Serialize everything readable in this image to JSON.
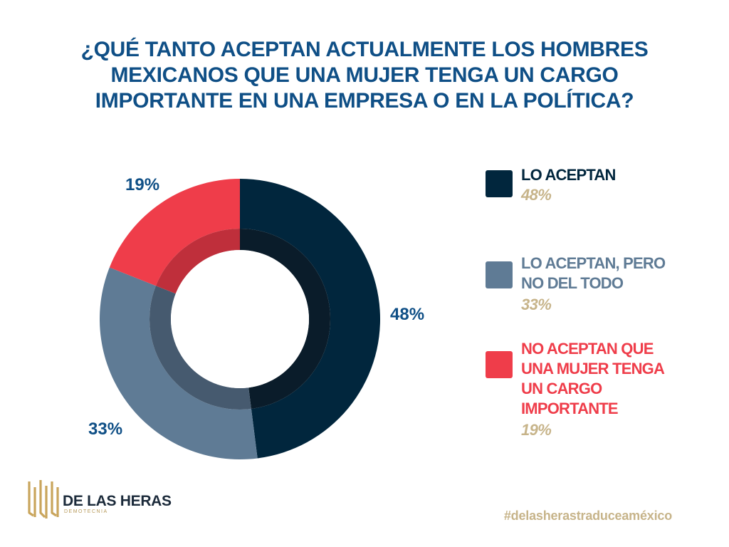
{
  "title_lines": [
    "¿QUÉ TANTO ACEPTAN ACTUALMENTE LOS HOMBRES",
    "MEXICANOS QUE UNA MUJER TENGA UN CARGO",
    "IMPORTANTE EN UNA EMPRESA O EN LA POLÍTICA?"
  ],
  "chart_data": {
    "type": "pie",
    "title": "¿QUÉ TANTO ACEPTAN ACTUALMENTE LOS HOMBRES MEXICANOS QUE UNA MUJER TENGA UN CARGO IMPORTANTE EN UNA EMPRESA O EN LA POLÍTICA?",
    "style": "donut",
    "start": "12 o'clock, clockwise",
    "slices": [
      {
        "label": "LO ACEPTAN",
        "value": 48,
        "display": "48%",
        "color": "#01263d",
        "shade": "#0a1c2a"
      },
      {
        "label": "LO ACEPTAN, PERO NO DEL TODO",
        "value": 33,
        "display": "33%",
        "color": "#5f7b95",
        "shade": "#465a6f"
      },
      {
        "label": "NO ACEPTAN QUE UNA MUJER TENGA UN CARGO IMPORTANTE",
        "value": 19,
        "display": "19%",
        "color": "#ef3d4a",
        "shade": "#bf2f3b"
      }
    ]
  },
  "legend": [
    {
      "lines": [
        "LO ACEPTAN"
      ],
      "pct": "48%",
      "color": "#01263d",
      "text_color": "#01263d"
    },
    {
      "lines": [
        "LO ACEPTAN, PERO",
        "NO DEL TODO"
      ],
      "pct": "33%",
      "color": "#5f7b95",
      "text_color": "#5f7b95"
    },
    {
      "lines": [
        "NO ACEPTAN QUE",
        "UNA MUJER TENGA",
        "UN CARGO",
        "IMPORTANTE"
      ],
      "pct": "19%",
      "color": "#ef3d4a",
      "text_color": "#ef3d4a"
    }
  ],
  "logo": {
    "name": "DE LAS HERAS",
    "sub": "DEMOTECNIA",
    "icon": "columns-logo-icon"
  },
  "hashtag": "#delasherastraduceaméxico"
}
